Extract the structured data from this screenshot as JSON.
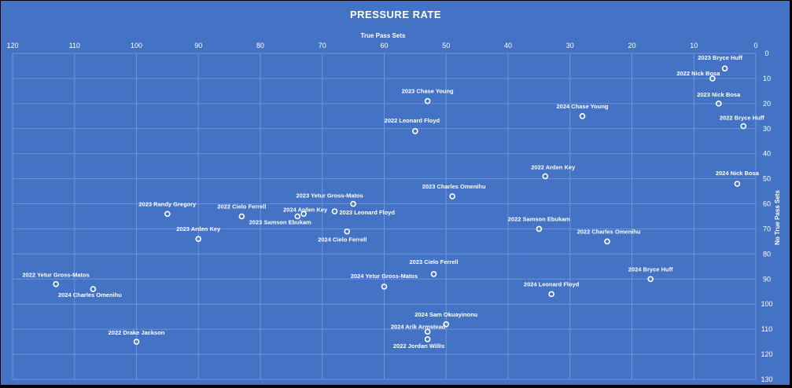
{
  "chart_data": {
    "type": "scatter",
    "title": "PRESSURE RATE",
    "xlabel": "True Pass Sets",
    "ylabel": "No True Pass Sets",
    "xlim": [
      120,
      0
    ],
    "ylim": [
      0,
      130
    ],
    "x_ticks": [
      "120",
      "110",
      "100",
      "90",
      "80",
      "70",
      "60",
      "50",
      "40",
      "30",
      "20",
      "10",
      "0"
    ],
    "y_ticks": [
      "0",
      "10",
      "20",
      "30",
      "40",
      "50",
      "60",
      "70",
      "80",
      "90",
      "100",
      "110",
      "120",
      "130"
    ],
    "grid": true,
    "legend": "none",
    "colors": {
      "background": "#4472c4",
      "marker": "#ffffff",
      "grid": "#6f93d6",
      "outer": "#000000"
    },
    "points": [
      {
        "label": "2023 Bryce Huff",
        "x": 5,
        "y": 6
      },
      {
        "label": "2022 Nick Bosa",
        "x": 7,
        "y": 10
      },
      {
        "label": "2023 Nick Bosa",
        "x": 6,
        "y": 20
      },
      {
        "label": "2022 Bryce Huff",
        "x": 2,
        "y": 29
      },
      {
        "label": "2023 Chase Young",
        "x": 53,
        "y": 19
      },
      {
        "label": "2024 Chase Young",
        "x": 28,
        "y": 25
      },
      {
        "label": "2022 Leonard Floyd",
        "x": 55,
        "y": 31
      },
      {
        "label": "2022 Arden Key",
        "x": 34,
        "y": 49
      },
      {
        "label": "2024 Nick Bosa",
        "x": 3,
        "y": 52
      },
      {
        "label": "2023 Charles Omenihu",
        "x": 49,
        "y": 57
      },
      {
        "label": "2023 Yetur Gross-Matos",
        "x": 65,
        "y": 60
      },
      {
        "label": "2023 Randy Gregory",
        "x": 95,
        "y": 64
      },
      {
        "label": "2022 Cielo Ferrell",
        "x": 83,
        "y": 65
      },
      {
        "label": "2024 Arden Key",
        "x": 73,
        "y": 64
      },
      {
        "label": "2023 Leonard Floyd",
        "x": 68,
        "y": 63
      },
      {
        "label": "2023 Samson Ebukam",
        "x": 74,
        "y": 65
      },
      {
        "label": "2024 Cielo Ferrell",
        "x": 66,
        "y": 71
      },
      {
        "label": "2023 Arden Key",
        "x": 90,
        "y": 74
      },
      {
        "label": "2022 Samson Ebukam",
        "x": 35,
        "y": 70
      },
      {
        "label": "2022 Charles Omenihu",
        "x": 24,
        "y": 75
      },
      {
        "label": "2023 Cielo Ferrell",
        "x": 52,
        "y": 88
      },
      {
        "label": "2024 Yetur Gross-Matos",
        "x": 60,
        "y": 93
      },
      {
        "label": "2024 Bryce Huff",
        "x": 17,
        "y": 90
      },
      {
        "label": "2024 Leonard Floyd",
        "x": 33,
        "y": 96
      },
      {
        "label": "2022 Yetur Gross-Matos",
        "x": 113,
        "y": 92
      },
      {
        "label": "2024 Charles Omenihu",
        "x": 107,
        "y": 94
      },
      {
        "label": "2024 Sam Okuayinonu",
        "x": 50,
        "y": 108
      },
      {
        "label": "2024 Arik Armstead",
        "x": 53,
        "y": 111
      },
      {
        "label": "2022 Jordan Willis",
        "x": 53,
        "y": 114
      },
      {
        "label": "2022 Drake Jackson",
        "x": 100,
        "y": 115
      }
    ]
  }
}
